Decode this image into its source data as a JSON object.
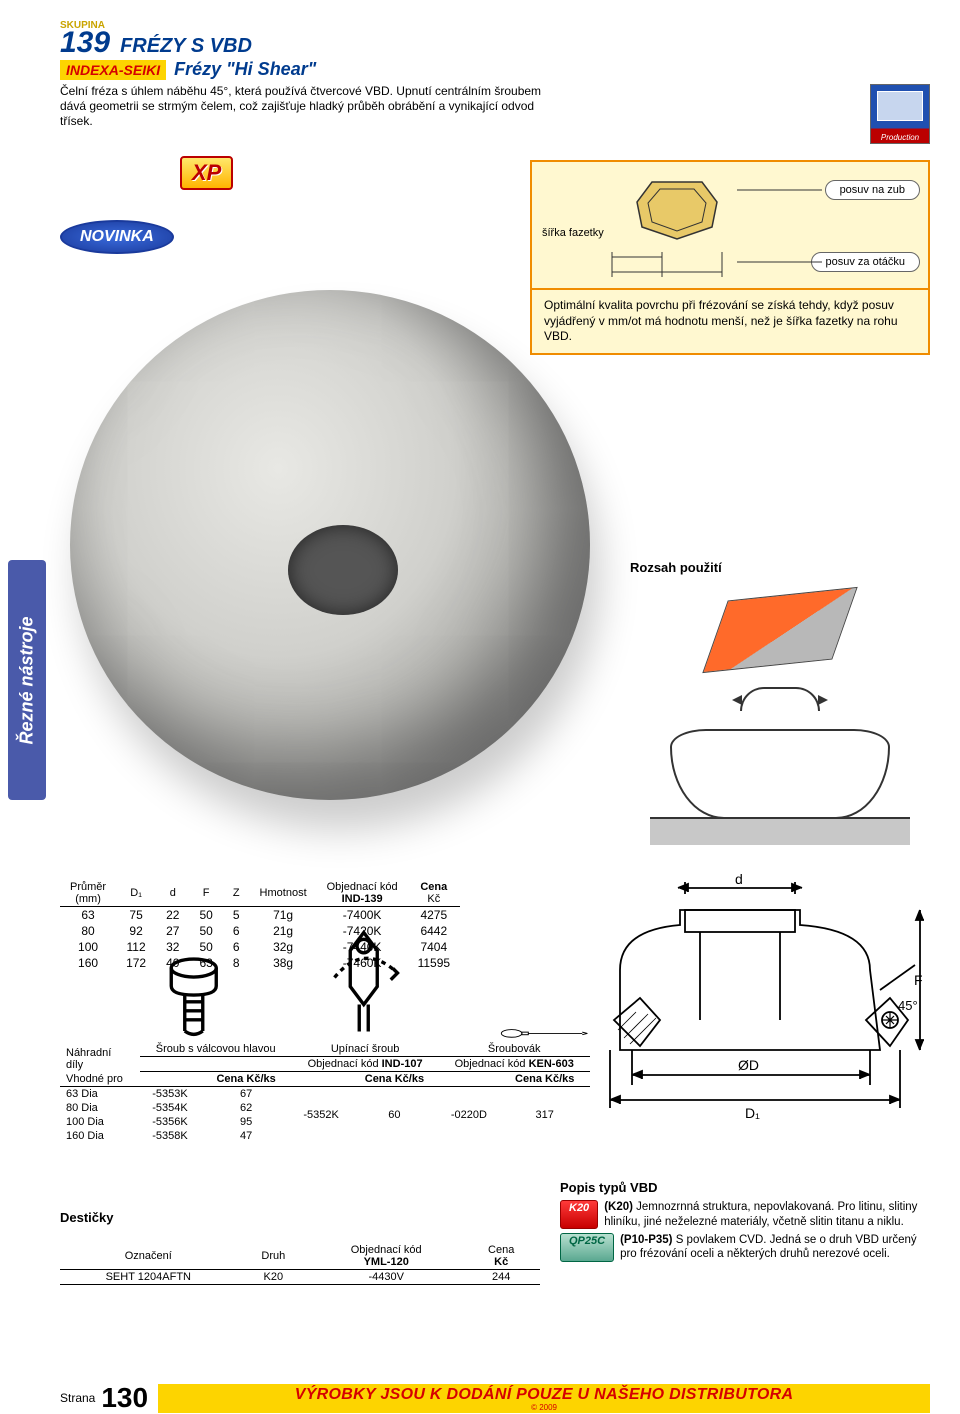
{
  "header": {
    "group_label": "SKUPINA",
    "group_number": "139",
    "title": "FRÉZY S VBD",
    "brand": "INDEXA-SEIKI",
    "subtitle": "Frézy \"Hi Shear\"",
    "description": "Čelní fréza s úhlem náběhu 45°, která používá čtvercové VBD. Upnutí centrálním šroubem dává geometrii se strmým čelem, což zajišťuje hladký průběh obrábění a vynikající odvod třísek.",
    "prod_label": "Production"
  },
  "badges": {
    "xp": "XP",
    "novinka": "NOVINKA"
  },
  "diagram": {
    "label_width": "šířka fazetky",
    "label_feed_tooth": "posuv na zub",
    "label_feed_rev": "posuv za otáčku",
    "note": "Optimální kvalita povrchu při frézování se získá tehdy, když posuv vyjádřený v mm/ot má hodnotu menší, než je šířka fazetky na rohu VBD."
  },
  "side_tab": "Řezné nástroje",
  "usage": {
    "title": "Rozsah použití"
  },
  "main_table": {
    "columns": [
      {
        "l1": "Průměr",
        "l2": "(mm)"
      },
      {
        "l1": "D₁"
      },
      {
        "l1": "d"
      },
      {
        "l1": "F"
      },
      {
        "l1": "Z"
      },
      {
        "l1": "Hmotnost"
      },
      {
        "l1": "Objednací kód",
        "l2": "IND-139",
        "bold2": true
      },
      {
        "l1": "Cena",
        "l2": "Kč",
        "bold1": true
      }
    ],
    "rows": [
      [
        "63",
        "75",
        "22",
        "50",
        "5",
        "71g",
        "-7400K",
        "4275"
      ],
      [
        "80",
        "92",
        "27",
        "50",
        "6",
        "21g",
        "-7420K",
        "6442"
      ],
      [
        "100",
        "112",
        "32",
        "50",
        "6",
        "32g",
        "-7440K",
        "7404"
      ],
      [
        "160",
        "172",
        "40",
        "63",
        "8",
        "38g",
        "-7460K",
        "11595"
      ]
    ]
  },
  "xsec_labels": {
    "d": "d",
    "F": "F",
    "ang": "45°",
    "DD": "ØD",
    "D1": "D₁"
  },
  "spare": {
    "side_label1": "Náhradní díly",
    "side_label2": "Vhodné pro",
    "groups": [
      {
        "name": "Šroub s válcovou hlavou",
        "code": ""
      },
      {
        "name": "Upínací šroub",
        "code": "IND-107"
      },
      {
        "name": "Šroubovák",
        "code": "KEN-603"
      }
    ],
    "code_label": "Objednací kód",
    "price_label": "Cena Kč/ks",
    "rows": [
      {
        "dia": "63 Dia",
        "c1": "-5353K",
        "p1": "67",
        "c2": "-5352K",
        "p2": "60",
        "c3": "-0220D",
        "p3": "317",
        "rs": 4
      },
      {
        "dia": "80 Dia",
        "c1": "-5354K",
        "p1": "62"
      },
      {
        "dia": "100 Dia",
        "c1": "-5356K",
        "p1": "95"
      },
      {
        "dia": "160 Dia",
        "c1": "-5358K",
        "p1": "47"
      }
    ]
  },
  "inserts": {
    "title": "Destičky",
    "columns": [
      "Označení",
      "Druh",
      "Objednací kód",
      "Cena"
    ],
    "sub": [
      "",
      "",
      "YML-120",
      "Kč"
    ],
    "rows": [
      [
        "SEHT 1204AFTN",
        "K20",
        "-4430V",
        "244"
      ]
    ]
  },
  "vbd": {
    "title": "Popis typů VBD",
    "items": [
      {
        "grade": "K20",
        "cls": "grade-k20",
        "text": "(K20) Jemnozrnná struktura, nepovlakovaná. Pro litinu, slitiny hliníku, jiné neželezné materiály, včetně slitin titanu a niklu."
      },
      {
        "grade": "QP25C",
        "cls": "grade-qp",
        "text": "(P10-P35) S povlakem CVD. Jedná se o druh VBD určený pro frézování oceli a některých druhů nerezové oceli."
      }
    ]
  },
  "footer": {
    "page_label": "Strana",
    "page_number": "130",
    "banner": "VÝROBKY JSOU K DODÁNÍ POUZE U NAŠEHO DISTRIBUTORA",
    "year": "© 2009"
  }
}
